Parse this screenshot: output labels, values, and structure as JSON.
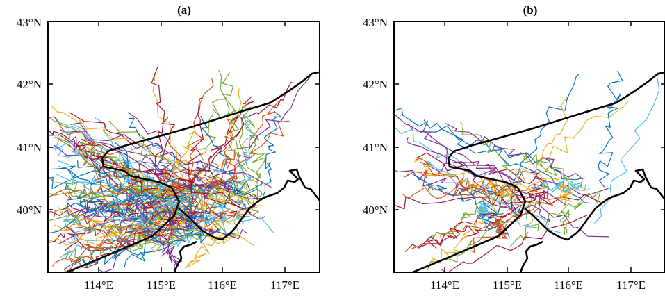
{
  "panels": [
    {
      "id": "a",
      "title": "(a)",
      "lat_ticks": [
        "43°N",
        "42°N",
        "41°N",
        "40°N"
      ],
      "lon_ticks": [
        "114°E",
        "115°E",
        "116°E",
        "117°E"
      ],
      "lon_range": [
        113.2,
        117.5
      ],
      "lat_range": [
        39.0,
        43.0
      ],
      "trajectory_count_approx": 120
    },
    {
      "id": "b",
      "title": "(b)",
      "lat_ticks": [
        "43°N",
        "42°N",
        "41°N",
        "40°N"
      ],
      "lon_ticks": [
        "114°E",
        "115°E",
        "116°E",
        "117°E"
      ],
      "lon_range": [
        113.2,
        117.5
      ],
      "lat_range": [
        39.0,
        43.0
      ],
      "trajectory_count_approx": 45
    }
  ],
  "colors": [
    "#0072BD",
    "#D95319",
    "#EDB120",
    "#7E2F8E",
    "#77AC30",
    "#4DBEEE",
    "#A2142F"
  ],
  "boundary_color": "#000000"
}
